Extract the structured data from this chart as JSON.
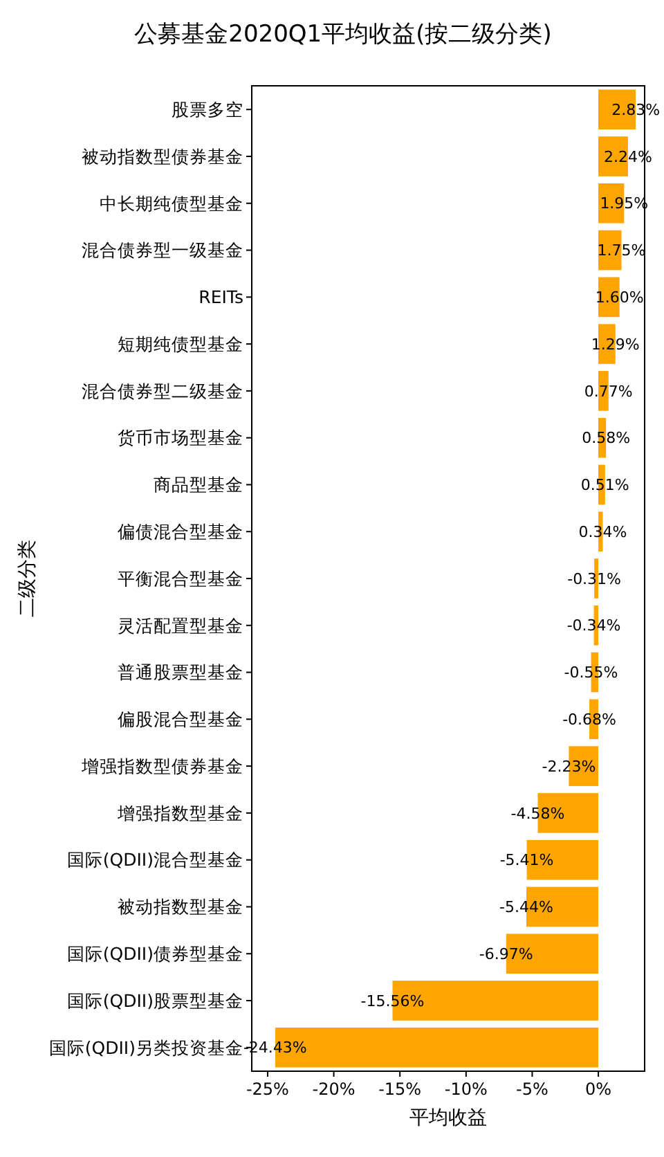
{
  "chart_data": {
    "type": "bar",
    "orientation": "horizontal",
    "title": "公募基金2020Q1平均收益(按二级分类)",
    "xlabel": "平均收益",
    "ylabel": "二级分类",
    "categories": [
      "股票多空",
      "被动指数型债券基金",
      "中长期纯债型基金",
      "混合债券型一级基金",
      "REITs",
      "短期纯债型基金",
      "混合债券型二级基金",
      "货币市场型基金",
      "商品型基金",
      "偏债混合型基金",
      "平衡混合型基金",
      "灵活配置型基金",
      "普通股票型基金",
      "偏股混合型基金",
      "增强指数型债券基金",
      "增强指数型基金",
      "国际(QDII)混合型基金",
      "被动指数型基金",
      "国际(QDII)债券型基金",
      "国际(QDII)股票型基金",
      "国际(QDII)另类投资基金"
    ],
    "values": [
      2.83,
      2.24,
      1.95,
      1.75,
      1.6,
      1.29,
      0.77,
      0.58,
      0.51,
      0.34,
      -0.31,
      -0.34,
      -0.55,
      -0.68,
      -2.23,
      -4.58,
      -5.41,
      -5.44,
      -6.97,
      -15.56,
      -24.43
    ],
    "value_labels": [
      "2.83%",
      "2.24%",
      "1.95%",
      "1.75%",
      "1.60%",
      "1.29%",
      "0.77%",
      "0.58%",
      "0.51%",
      "0.34%",
      "-0.31%",
      "-0.34%",
      "-0.55%",
      "-0.68%",
      "-2.23%",
      "-4.58%",
      "-5.41%",
      "-5.44%",
      "-6.97%",
      "-15.56%",
      "-24.43%"
    ],
    "color": "#ffa500",
    "xlim": [
      -26.2,
      3.5
    ],
    "xticks": [
      {
        "value": -25,
        "label": "-25%"
      },
      {
        "value": -20,
        "label": "-20%"
      },
      {
        "value": -15,
        "label": "-15%"
      },
      {
        "value": -10,
        "label": "-10%"
      },
      {
        "value": -5,
        "label": "-5%"
      },
      {
        "value": 0,
        "label": "0%"
      }
    ]
  }
}
